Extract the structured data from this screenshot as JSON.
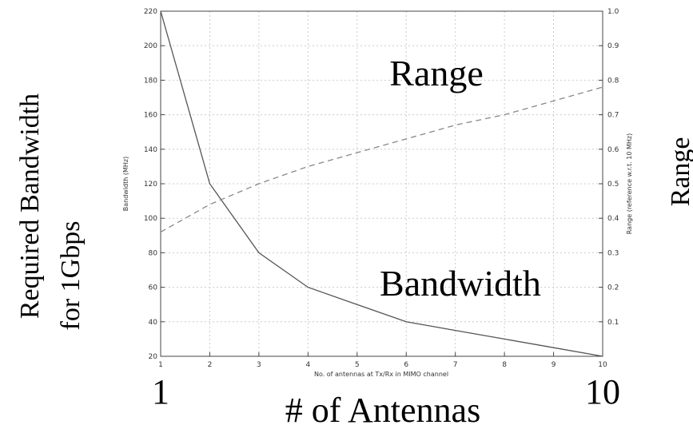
{
  "chart_data": {
    "type": "line",
    "x": [
      1,
      2,
      3,
      4,
      5,
      6,
      7,
      8,
      9,
      10
    ],
    "series": [
      {
        "name": "Bandwidth",
        "axis": "left",
        "style": "solid",
        "color": "#555555",
        "values": [
          220,
          120,
          80,
          60,
          50,
          40,
          35,
          30,
          25,
          20
        ]
      },
      {
        "name": "Range",
        "axis": "right",
        "style": "dashed",
        "color": "#888888",
        "values": [
          0.36,
          0.44,
          0.5,
          0.55,
          0.59,
          0.63,
          0.67,
          0.7,
          0.74,
          0.78
        ]
      }
    ],
    "xlim": [
      1,
      10
    ],
    "ylim": [
      20,
      220
    ],
    "y2lim": [
      0,
      1.0
    ],
    "xticks": [
      "1",
      "2",
      "3",
      "4",
      "5",
      "6",
      "7",
      "8",
      "9",
      "10"
    ],
    "yticks": [
      "20",
      "40",
      "60",
      "80",
      "100",
      "120",
      "140",
      "160",
      "180",
      "200",
      "220"
    ],
    "y2ticks": [
      "0.1",
      "0.2",
      "0.3",
      "0.4",
      "0.5",
      "0.6",
      "0.7",
      "0.8",
      "0.9",
      "1.0"
    ],
    "xlabel": "No. of antennas at Tx/Rx in MIMO channel",
    "ylabel": "Bandwidth (MHz)",
    "y2label": "Range (reference w.r.t. 10 MHz)",
    "grid": true
  },
  "overlay": {
    "range_label": "Range",
    "bandwidth_label": "Bandwidth",
    "left_title_line1": "Required Bandwidth",
    "left_title_line2": "for 1Gbps",
    "right_title": "Range",
    "x_start": "1",
    "x_end": "10",
    "x_title": "# of Antennas"
  }
}
